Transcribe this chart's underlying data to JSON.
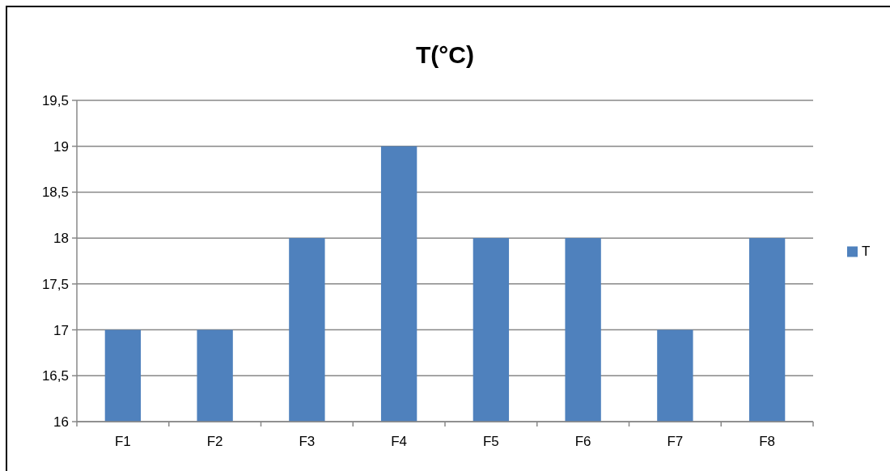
{
  "chart_data": {
    "type": "bar",
    "title": "T(°C)",
    "categories": [
      "F1",
      "F2",
      "F3",
      "F4",
      "F5",
      "F6",
      "F7",
      "F8"
    ],
    "series": [
      {
        "name": "T",
        "color": "#4f81bd",
        "values": [
          17,
          17,
          18,
          19,
          18,
          18,
          17,
          18
        ]
      }
    ],
    "ylim": [
      16,
      19.5
    ],
    "yticks": [
      16,
      {
        "value": 16.5,
        "label": "16,5"
      },
      17,
      {
        "value": 17.5,
        "label": "17,5"
      },
      18,
      {
        "value": 18.5,
        "label": "18,5"
      },
      19,
      {
        "value": 19.5,
        "label": "19,5"
      }
    ],
    "grid": "y",
    "legend": "right"
  }
}
